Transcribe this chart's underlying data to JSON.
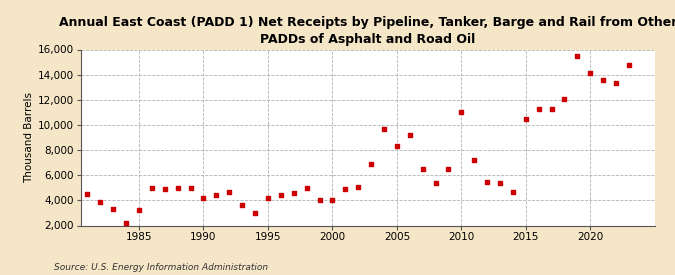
{
  "title": "Annual East Coast (PADD 1) Net Receipts by Pipeline, Tanker, Barge and Rail from Other\nPADDs of Asphalt and Road Oil",
  "ylabel": "Thousand Barrels",
  "source": "Source: U.S. Energy Information Administration",
  "background_color": "#f5e6c8",
  "plot_bg_color": "#ffffff",
  "marker_color": "#cc0000",
  "years": [
    1981,
    1982,
    1983,
    1984,
    1985,
    1986,
    1987,
    1988,
    1989,
    1990,
    1991,
    1992,
    1993,
    1994,
    1995,
    1996,
    1997,
    1998,
    1999,
    2000,
    2001,
    2002,
    2003,
    2004,
    2005,
    2006,
    2007,
    2008,
    2009,
    2010,
    2011,
    2012,
    2013,
    2014,
    2015,
    2016,
    2017,
    2018,
    2019,
    2020,
    2021,
    2022,
    2023
  ],
  "values": [
    4500,
    3900,
    3300,
    2200,
    3200,
    5000,
    4900,
    5000,
    5000,
    4200,
    4400,
    4700,
    3600,
    3000,
    4200,
    4400,
    4600,
    5000,
    4000,
    4000,
    4900,
    5100,
    6900,
    9700,
    8300,
    9200,
    6500,
    5400,
    6500,
    11000,
    7200,
    5500,
    5400,
    4700,
    10500,
    11300,
    11300,
    12100,
    15500,
    14100,
    13600,
    13300,
    14800
  ],
  "ylim": [
    2000,
    16000
  ],
  "yticks": [
    2000,
    4000,
    6000,
    8000,
    10000,
    12000,
    14000,
    16000
  ],
  "xlim": [
    1980.5,
    2025
  ],
  "xticks": [
    1985,
    1990,
    1995,
    2000,
    2005,
    2010,
    2015,
    2020
  ]
}
